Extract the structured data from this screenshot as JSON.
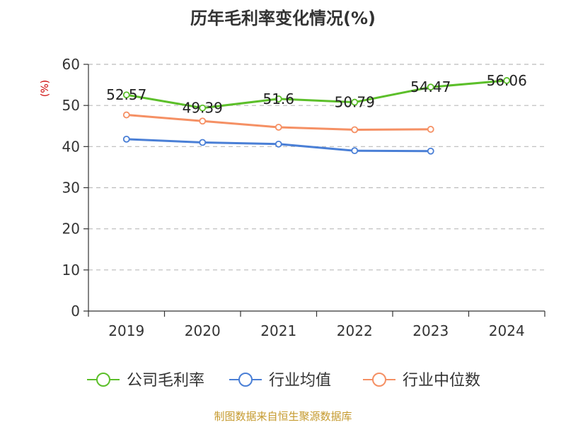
{
  "chart_data": {
    "type": "line",
    "title": "历年毛利率变化情况(%)",
    "ylabel": "(%)",
    "xlabel": "",
    "categories": [
      "2019",
      "2020",
      "2021",
      "2022",
      "2023",
      "2024"
    ],
    "ylim": [
      0,
      60
    ],
    "yticks": [
      0,
      10,
      20,
      30,
      40,
      50,
      60
    ],
    "grid": "horizontal dashed",
    "legend_position": "bottom",
    "series": [
      {
        "name": "公司毛利率",
        "color": "#5cbf2a",
        "values": [
          52.57,
          49.39,
          51.6,
          50.79,
          54.47,
          56.06
        ],
        "labels": [
          "52.57",
          "49.39",
          "51.6",
          "50.79",
          "54.47",
          "56.06"
        ]
      },
      {
        "name": "行业均值",
        "color": "#4a7fd6",
        "values": [
          41.8,
          41.0,
          40.6,
          39.0,
          38.9,
          null
        ]
      },
      {
        "name": "行业中位数",
        "color": "#f59064",
        "values": [
          47.7,
          46.2,
          44.7,
          44.1,
          44.2,
          null
        ]
      }
    ]
  },
  "source": "制图数据来自恒生聚源数据库"
}
